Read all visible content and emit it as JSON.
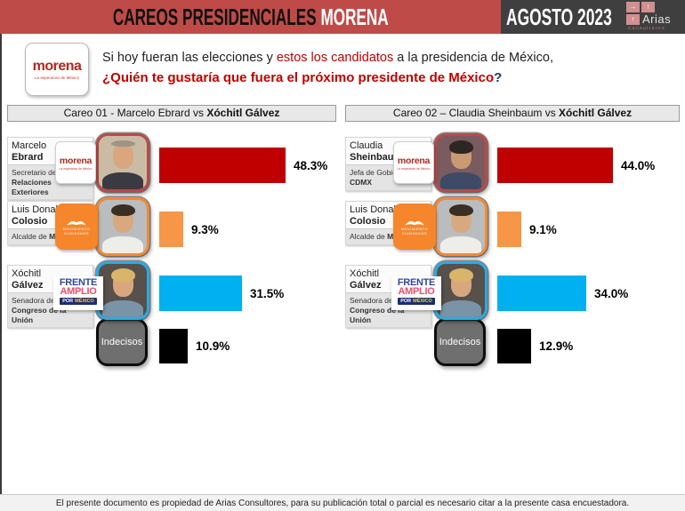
{
  "header": {
    "title_dark": "CAREOS PRESIDENCIALES",
    "title_light": "MORENA",
    "period": "AGOSTO 2023",
    "brand": {
      "name": "Arias",
      "subtitle": "Consultores"
    }
  },
  "colors": {
    "header_red": "#BE4B48",
    "header_dark": "#3F3F3F",
    "accent_red": "#C00000",
    "orange": "#F79646",
    "cyan": "#00B0F0",
    "black": "#000000",
    "morena_red": "#B02A1E"
  },
  "question": {
    "logo_text": "morena",
    "logo_subtext": "La esperanza de México",
    "line1_a": "Si hoy fueran las elecciones y ",
    "line1_b": "estos los candidatos",
    "line1_c": " a la presidencia de México,",
    "line2_main": "¿Quién te gustaría que fuera el próximo presidente de México",
    "line2_mark": "?"
  },
  "party_logos": {
    "morena": {
      "text": "morena",
      "subtext": "La esperanza de México"
    },
    "mc": {
      "line1": "MOVIMIENTO",
      "line2": "CIUDADANO"
    },
    "fam": {
      "word1": "FRENTE",
      "word2": "AMPLIO",
      "word3": "POR",
      "word4": "MÉXICO"
    }
  },
  "charts": [
    {
      "header_regular": "Careo 01 - Marcelo Ebrard vs ",
      "header_bold": "Xóchitl Gálvez",
      "rows": [
        {
          "name_line1": "Marcelo",
          "name_line2": "Ebrard",
          "role_regular": "Secretario de ",
          "role_bold": "Relaciones Exteriores",
          "party": "morena",
          "value": 48.3,
          "value_label": "48.3%",
          "bar_color": "#C00000",
          "photo_border": "#B84A48"
        },
        {
          "name_line1": "Luis Donaldo",
          "name_line2": "Colosio",
          "role_regular": "Alcalde de ",
          "role_bold": "Monterrey",
          "party": "mc",
          "value": 9.3,
          "value_label": "9.3%",
          "bar_color": "#F79646",
          "photo_border": "#F08A36"
        },
        {
          "name_line1": "Xóchitl",
          "name_line2": "Gálvez",
          "role_regular": "Senadora del ",
          "role_bold": "Congreso de la Unión",
          "party": "fam",
          "value": 31.5,
          "value_label": "31.5%",
          "bar_color": "#00B0F0",
          "photo_border": "#29ABE2"
        },
        {
          "label": "Indecisos",
          "value": 10.9,
          "value_label": "10.9%",
          "bar_color": "#000000"
        }
      ]
    },
    {
      "header_regular": "Careo 02 – Claudia Sheinbaum vs ",
      "header_bold": "Xóchitl Gálvez",
      "rows": [
        {
          "name_line1": "Claudia",
          "name_line2": "Sheinbaum",
          "role_regular": "Jefa de Gobierno ",
          "role_bold": "CDMX",
          "party": "morena",
          "value": 44.0,
          "value_label": "44.0%",
          "bar_color": "#C00000",
          "photo_border": "#B84A48"
        },
        {
          "name_line1": "Luis Donaldo",
          "name_line2": "Colosio",
          "role_regular": "Alcalde de ",
          "role_bold": "Monterrey",
          "party": "mc",
          "value": 9.1,
          "value_label": "9.1%",
          "bar_color": "#F79646",
          "photo_border": "#F08A36"
        },
        {
          "name_line1": "Xóchitl",
          "name_line2": "Gálvez",
          "role_regular": "Senadora del ",
          "role_bold": "Congreso de la Unión",
          "party": "fam",
          "value": 34.0,
          "value_label": "34.0%",
          "bar_color": "#00B0F0",
          "photo_border": "#29ABE2"
        },
        {
          "label": "Indecisos",
          "value": 12.9,
          "value_label": "12.9%",
          "bar_color": "#000000"
        }
      ]
    }
  ],
  "chart_data": [
    {
      "type": "bar",
      "orientation": "horizontal",
      "title": "Careo 01 - Marcelo Ebrard vs Xóchitl Gálvez",
      "categories": [
        "Marcelo Ebrard",
        "Luis Donaldo Colosio",
        "Xóchitl Gálvez",
        "Indecisos"
      ],
      "values": [
        48.3,
        9.3,
        31.5,
        10.9
      ],
      "unit": "%",
      "colors": [
        "#C00000",
        "#F79646",
        "#00B0F0",
        "#000000"
      ],
      "xlim": [
        0,
        50
      ],
      "grid": false,
      "data_labels": [
        "48.3%",
        "9.3%",
        "31.5%",
        "10.9%"
      ]
    },
    {
      "type": "bar",
      "orientation": "horizontal",
      "title": "Careo 02 – Claudia Sheinbaum vs Xóchitl Gálvez",
      "categories": [
        "Claudia Sheinbaum",
        "Luis Donaldo Colosio",
        "Xóchitl Gálvez",
        "Indecisos"
      ],
      "values": [
        44.0,
        9.1,
        34.0,
        12.9
      ],
      "unit": "%",
      "colors": [
        "#C00000",
        "#F79646",
        "#00B0F0",
        "#000000"
      ],
      "xlim": [
        0,
        50
      ],
      "grid": false,
      "data_labels": [
        "44.0%",
        "9.1%",
        "34.0%",
        "12.9%"
      ]
    }
  ],
  "footer": {
    "text": "El presente documento es propiedad de Arias Consultores, para su publicación total o parcial es necesario citar a la presente casa encuestadora."
  }
}
